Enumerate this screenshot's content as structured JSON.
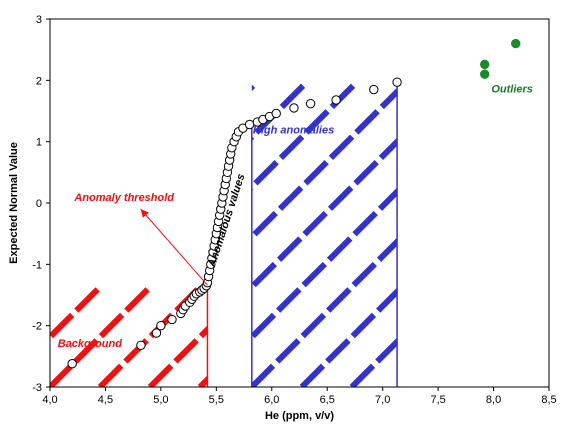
{
  "chart_data": {
    "type": "scatter",
    "title": "",
    "xlabel": "He (ppm, v/v)",
    "ylabel": "Expected Normal Value",
    "xlim": [
      4.0,
      8.5
    ],
    "ylim": [
      -3,
      3
    ],
    "x_ticks": [
      "4,0",
      "4,5",
      "5,0",
      "5,5",
      "6,0",
      "6,5",
      "7,0",
      "7,5",
      "8,0",
      "8,5"
    ],
    "y_ticks": [
      "-3",
      "-2",
      "-1",
      "0",
      "1",
      "2",
      "3"
    ],
    "grid": false,
    "series": [
      {
        "marker": "open-circle",
        "points": [
          [
            4.2,
            -2.62
          ],
          [
            4.82,
            -2.32
          ],
          [
            4.96,
            -2.12
          ],
          [
            5.0,
            -2.0
          ],
          [
            5.1,
            -1.9
          ],
          [
            5.18,
            -1.8
          ],
          [
            5.2,
            -1.74
          ],
          [
            5.22,
            -1.68
          ],
          [
            5.26,
            -1.62
          ],
          [
            5.28,
            -1.57
          ],
          [
            5.3,
            -1.52
          ],
          [
            5.32,
            -1.48
          ],
          [
            5.35,
            -1.45
          ],
          [
            5.37,
            -1.42
          ],
          [
            5.39,
            -1.39
          ],
          [
            5.41,
            -1.35
          ],
          [
            5.42,
            -1.3
          ],
          [
            5.43,
            -1.2
          ],
          [
            5.44,
            -1.1
          ],
          [
            5.45,
            -1.0
          ],
          [
            5.46,
            -0.9
          ],
          [
            5.47,
            -0.8
          ],
          [
            5.48,
            -0.7
          ],
          [
            5.49,
            -0.6
          ],
          [
            5.5,
            -0.5
          ],
          [
            5.51,
            -0.4
          ],
          [
            5.52,
            -0.3
          ],
          [
            5.53,
            -0.2
          ],
          [
            5.54,
            -0.1
          ],
          [
            5.55,
            0.0
          ],
          [
            5.56,
            0.1
          ],
          [
            5.57,
            0.2
          ],
          [
            5.58,
            0.3
          ],
          [
            5.59,
            0.4
          ],
          [
            5.6,
            0.5
          ],
          [
            5.61,
            0.6
          ],
          [
            5.62,
            0.7
          ],
          [
            5.63,
            0.8
          ],
          [
            5.64,
            0.9
          ],
          [
            5.66,
            1.0
          ],
          [
            5.68,
            1.08
          ],
          [
            5.7,
            1.16
          ],
          [
            5.74,
            1.22
          ],
          [
            5.8,
            1.28
          ],
          [
            5.87,
            1.32
          ],
          [
            5.92,
            1.36
          ],
          [
            5.98,
            1.41
          ],
          [
            6.04,
            1.46
          ],
          [
            6.2,
            1.55
          ],
          [
            6.35,
            1.62
          ],
          [
            6.58,
            1.68
          ],
          [
            6.92,
            1.85
          ],
          [
            7.13,
            1.97
          ]
        ]
      },
      {
        "name": "Outliers",
        "marker": "filled-circle",
        "color": "#1a8a2a",
        "points": [
          [
            7.92,
            2.1
          ],
          [
            7.92,
            2.26
          ],
          [
            8.2,
            2.6
          ]
        ]
      }
    ],
    "hatched_regions": [
      {
        "x": [
          4.0,
          5.42
        ],
        "y_top": -1.34,
        "color": "#ee1111"
      },
      {
        "x": [
          5.82,
          7.13
        ],
        "y_top": 1.97,
        "color": "#3333cc"
      }
    ],
    "annotations": [
      {
        "text": "Background",
        "x": 4.07,
        "y": -2.35,
        "color": "#ee1111"
      },
      {
        "text": "Anomaly threshold",
        "x": 4.22,
        "y": 0.03,
        "color": "#ee1111",
        "arrow_to": [
          5.42,
          -1.34
        ]
      },
      {
        "text": "Anomalous values",
        "x": 5.62,
        "y": -0.3,
        "color": "#000000",
        "rotate": -72
      },
      {
        "text": "High anomalies",
        "x": 5.83,
        "y": 1.13,
        "color": "#3333cc"
      },
      {
        "text": "Outliers",
        "x": 7.98,
        "y": 1.8,
        "color": "#1a7a2a"
      }
    ],
    "colors": {
      "background_hatch": "#ee1111",
      "high_hatch": "#3333cc",
      "outlier": "#1a8a2a",
      "outlier_text": "#1a7a2a",
      "threshold_text": "#ee1111"
    }
  }
}
